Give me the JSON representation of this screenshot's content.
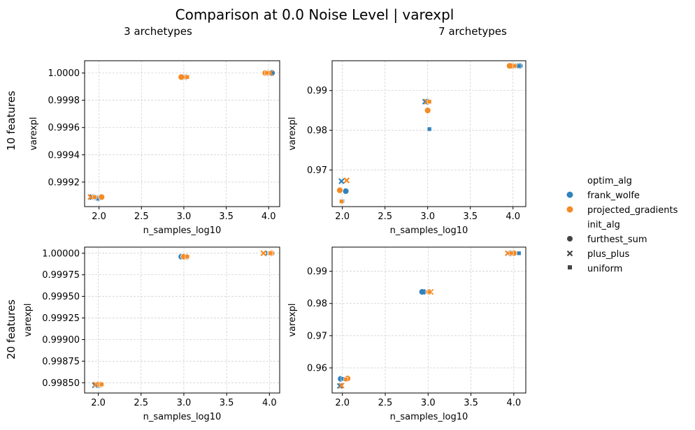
{
  "figure": {
    "title": "Comparison at 0.0 Noise Level | varexpl",
    "col_titles": [
      "3 archetypes",
      "7 archetypes"
    ],
    "row_titles": [
      "10 features",
      "20 features"
    ]
  },
  "legend": {
    "hue_title": "optim_alg",
    "hue_items": [
      {
        "label": "frank_wolfe",
        "color": "#3182bd"
      },
      {
        "label": "projected_gradients",
        "color": "#f58a24"
      }
    ],
    "style_title": "init_alg",
    "style_items": [
      {
        "label": "furthest_sum",
        "marker": "circle"
      },
      {
        "label": "plus_plus",
        "marker": "x"
      },
      {
        "label": "uniform",
        "marker": "square"
      }
    ]
  },
  "chart_data": [
    {
      "type": "scatter",
      "facet": {
        "row": "10 features",
        "col": "3 archetypes"
      },
      "xlabel": "n_samples_log10",
      "ylabel": "varexpl",
      "xlim": [
        1.83,
        4.13
      ],
      "ylim": [
        0.99902,
        1.00009
      ],
      "xticks": [
        "2.0",
        "2.5",
        "3.0",
        "3.5",
        "4.0"
      ],
      "yticks": [
        "0.9992",
        "0.9994",
        "0.9996",
        "0.9998",
        "1.0000"
      ],
      "yticks_values": [
        0.9992,
        0.9994,
        0.9996,
        0.9998,
        1.0
      ],
      "grid": true,
      "series": [
        {
          "name": "frank_wolfe",
          "points": [
            {
              "x": 1.99,
              "y": 0.99908,
              "init": "furthest_sum"
            },
            {
              "x": 1.92,
              "y": 0.99909,
              "init": "plus_plus"
            },
            {
              "x": 1.98,
              "y": 0.99908,
              "init": "uniform"
            },
            {
              "x": 2.99,
              "y": 0.99997,
              "init": "furthest_sum"
            },
            {
              "x": 3.01,
              "y": 0.99997,
              "init": "plus_plus"
            },
            {
              "x": 3.03,
              "y": 0.99997,
              "init": "uniform"
            },
            {
              "x": 4.04,
              "y": 1.0,
              "init": "furthest_sum"
            },
            {
              "x": 4.01,
              "y": 1.0,
              "init": "plus_plus"
            },
            {
              "x": 3.99,
              "y": 1.0,
              "init": "uniform"
            }
          ]
        },
        {
          "name": "projected_gradients",
          "points": [
            {
              "x": 2.03,
              "y": 0.99909,
              "init": "furthest_sum"
            },
            {
              "x": 1.9,
              "y": 0.99909,
              "init": "plus_plus"
            },
            {
              "x": 1.95,
              "y": 0.99909,
              "init": "uniform"
            },
            {
              "x": 2.97,
              "y": 0.99997,
              "init": "furthest_sum"
            },
            {
              "x": 3.0,
              "y": 0.99997,
              "init": "plus_plus"
            },
            {
              "x": 3.04,
              "y": 0.99997,
              "init": "uniform"
            },
            {
              "x": 3.96,
              "y": 1.0,
              "init": "furthest_sum"
            },
            {
              "x": 4.02,
              "y": 1.0,
              "init": "plus_plus"
            },
            {
              "x": 3.98,
              "y": 1.0,
              "init": "uniform"
            }
          ]
        }
      ]
    },
    {
      "type": "scatter",
      "facet": {
        "row": "10 features",
        "col": "7 archetypes"
      },
      "xlabel": "n_samples_log10",
      "ylabel": "varexpl",
      "xlim": [
        1.88,
        4.15
      ],
      "ylim": [
        0.9608,
        0.9975
      ],
      "xticks": [
        "2.0",
        "2.5",
        "3.0",
        "3.5",
        "4.0"
      ],
      "yticks": [
        "0.97",
        "0.98",
        "0.99"
      ],
      "yticks_values": [
        0.97,
        0.98,
        0.99
      ],
      "grid": true,
      "series": [
        {
          "name": "frank_wolfe",
          "points": [
            {
              "x": 2.04,
              "y": 0.9647,
              "init": "furthest_sum"
            },
            {
              "x": 1.99,
              "y": 0.9672,
              "init": "plus_plus"
            },
            {
              "x": 2.0,
              "y": 0.9622,
              "init": "uniform"
            },
            {
              "x": 3.0,
              "y": 0.9872,
              "init": "furthest_sum"
            },
            {
              "x": 2.97,
              "y": 0.9872,
              "init": "plus_plus"
            },
            {
              "x": 3.02,
              "y": 0.9803,
              "init": "uniform"
            },
            {
              "x": 4.08,
              "y": 0.9962,
              "init": "furthest_sum"
            },
            {
              "x": 4.03,
              "y": 0.9962,
              "init": "plus_plus"
            },
            {
              "x": 4.07,
              "y": 0.9962,
              "init": "uniform"
            }
          ]
        },
        {
          "name": "projected_gradients",
          "points": [
            {
              "x": 1.97,
              "y": 0.9649,
              "init": "furthest_sum"
            },
            {
              "x": 2.05,
              "y": 0.9674,
              "init": "plus_plus"
            },
            {
              "x": 1.99,
              "y": 0.9621,
              "init": "uniform"
            },
            {
              "x": 3.0,
              "y": 0.985,
              "init": "furthest_sum"
            },
            {
              "x": 2.99,
              "y": 0.9872,
              "init": "plus_plus"
            },
            {
              "x": 3.02,
              "y": 0.9872,
              "init": "uniform"
            },
            {
              "x": 3.96,
              "y": 0.9962,
              "init": "furthest_sum"
            },
            {
              "x": 4.01,
              "y": 0.9962,
              "init": "plus_plus"
            },
            {
              "x": 4.02,
              "y": 0.9962,
              "init": "uniform"
            }
          ]
        }
      ]
    },
    {
      "type": "scatter",
      "facet": {
        "row": "20 features",
        "col": "3 archetypes"
      },
      "xlabel": "n_samples_log10",
      "ylabel": "varexpl",
      "xlim": [
        1.84,
        4.12
      ],
      "ylim": [
        0.998381,
        1.000071
      ],
      "xticks": [
        "2.0",
        "2.5",
        "3.0",
        "3.5",
        "4.0"
      ],
      "yticks": [
        "0.99850",
        "0.99875",
        "0.99900",
        "0.99925",
        "0.99950",
        "0.99975",
        "1.00000"
      ],
      "yticks_values": [
        0.9985,
        0.99875,
        0.999,
        0.99925,
        0.9995,
        0.99975,
        1.0
      ],
      "grid": true,
      "series": [
        {
          "name": "frank_wolfe",
          "points": [
            {
              "x": 2.01,
              "y": 0.99847,
              "init": "furthest_sum"
            },
            {
              "x": 1.96,
              "y": 0.99847,
              "init": "plus_plus"
            },
            {
              "x": 1.99,
              "y": 0.99847,
              "init": "uniform"
            },
            {
              "x": 2.97,
              "y": 0.99996,
              "init": "furthest_sum"
            },
            {
              "x": 3.01,
              "y": 0.99996,
              "init": "plus_plus"
            },
            {
              "x": 3.03,
              "y": 0.99996,
              "init": "uniform"
            },
            {
              "x": 4.03,
              "y": 1.0,
              "init": "furthest_sum"
            },
            {
              "x": 3.98,
              "y": 1.0,
              "init": "plus_plus"
            },
            {
              "x": 4.0,
              "y": 1.0,
              "init": "uniform"
            }
          ]
        },
        {
          "name": "projected_gradients",
          "points": [
            {
              "x": 2.03,
              "y": 0.99848,
              "init": "furthest_sum"
            },
            {
              "x": 1.97,
              "y": 0.99848,
              "init": "plus_plus"
            },
            {
              "x": 2.04,
              "y": 0.99848,
              "init": "uniform"
            },
            {
              "x": 3.0,
              "y": 0.99996,
              "init": "furthest_sum"
            },
            {
              "x": 3.02,
              "y": 0.99996,
              "init": "plus_plus"
            },
            {
              "x": 3.04,
              "y": 0.99996,
              "init": "uniform"
            },
            {
              "x": 4.02,
              "y": 1.0,
              "init": "furthest_sum"
            },
            {
              "x": 3.93,
              "y": 1.0,
              "init": "plus_plus"
            },
            {
              "x": 4.01,
              "y": 1.0,
              "init": "uniform"
            }
          ]
        }
      ]
    },
    {
      "type": "scatter",
      "facet": {
        "row": "20 features",
        "col": "7 archetypes"
      },
      "xlabel": "n_samples_log10",
      "ylabel": "varexpl",
      "xlim": [
        1.88,
        4.14
      ],
      "ylim": [
        0.9522,
        0.9975
      ],
      "xticks": [
        "2.0",
        "2.5",
        "3.0",
        "3.5",
        "4.0"
      ],
      "yticks": [
        "0.96",
        "0.97",
        "0.98",
        "0.99"
      ],
      "yticks_values": [
        0.96,
        0.97,
        0.98,
        0.99
      ],
      "grid": true,
      "series": [
        {
          "name": "frank_wolfe",
          "points": [
            {
              "x": 1.98,
              "y": 0.9566,
              "init": "furthest_sum"
            },
            {
              "x": 1.97,
              "y": 0.9544,
              "init": "plus_plus"
            },
            {
              "x": 2.01,
              "y": 0.9566,
              "init": "uniform"
            },
            {
              "x": 2.93,
              "y": 0.9836,
              "init": "furthest_sum"
            },
            {
              "x": 2.98,
              "y": 0.9836,
              "init": "plus_plus"
            },
            {
              "x": 3.0,
              "y": 0.9836,
              "init": "uniform"
            },
            {
              "x": 3.96,
              "y": 0.9956,
              "init": "furthest_sum"
            },
            {
              "x": 3.99,
              "y": 0.9956,
              "init": "plus_plus"
            },
            {
              "x": 4.06,
              "y": 0.9956,
              "init": "uniform"
            }
          ]
        },
        {
          "name": "projected_gradients",
          "points": [
            {
              "x": 2.06,
              "y": 0.9567,
              "init": "furthest_sum"
            },
            {
              "x": 1.99,
              "y": 0.9545,
              "init": "plus_plus"
            },
            {
              "x": 2.04,
              "y": 0.9564,
              "init": "uniform"
            },
            {
              "x": 3.01,
              "y": 0.9836,
              "init": "furthest_sum"
            },
            {
              "x": 3.03,
              "y": 0.9836,
              "init": "plus_plus"
            },
            {
              "x": 3.02,
              "y": 0.9836,
              "init": "uniform"
            },
            {
              "x": 4.0,
              "y": 0.9956,
              "init": "furthest_sum"
            },
            {
              "x": 3.93,
              "y": 0.9956,
              "init": "plus_plus"
            },
            {
              "x": 3.97,
              "y": 0.9956,
              "init": "uniform"
            }
          ]
        }
      ]
    }
  ]
}
